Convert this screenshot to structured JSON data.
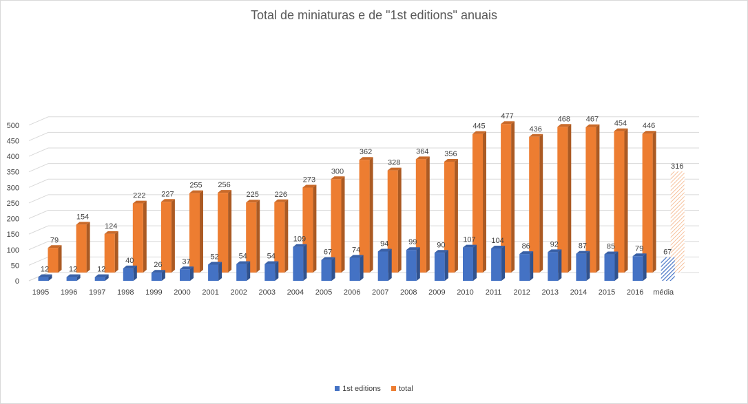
{
  "chart_data": {
    "type": "bar",
    "title": "Total de miniaturas e de \"1st editions\" anuais",
    "xlabel": "",
    "ylabel": "",
    "ylim": [
      0,
      500
    ],
    "yticks": [
      0,
      50,
      100,
      150,
      200,
      250,
      300,
      350,
      400,
      450,
      500
    ],
    "categories": [
      "1995",
      "1996",
      "1997",
      "1998",
      "1999",
      "2000",
      "2001",
      "2002",
      "2003",
      "2004",
      "2005",
      "2006",
      "2007",
      "2008",
      "2009",
      "2010",
      "2011",
      "2012",
      "2013",
      "2014",
      "2015",
      "2016",
      "média"
    ],
    "series": [
      {
        "name": "1st editions",
        "color": "#4472C4",
        "values": [
          12,
          12,
          12,
          40,
          26,
          37,
          52,
          54,
          54,
          109,
          67,
          74,
          94,
          99,
          90,
          107,
          104,
          86,
          92,
          87,
          85,
          79,
          67
        ]
      },
      {
        "name": "total",
        "color": "#ED7D31",
        "values": [
          79,
          154,
          124,
          222,
          227,
          255,
          256,
          225,
          226,
          273,
          300,
          362,
          328,
          364,
          356,
          445,
          477,
          436,
          468,
          467,
          454,
          446,
          316
        ]
      }
    ],
    "legend_position": "bottom",
    "highlighted_category": "média",
    "grid": true
  }
}
